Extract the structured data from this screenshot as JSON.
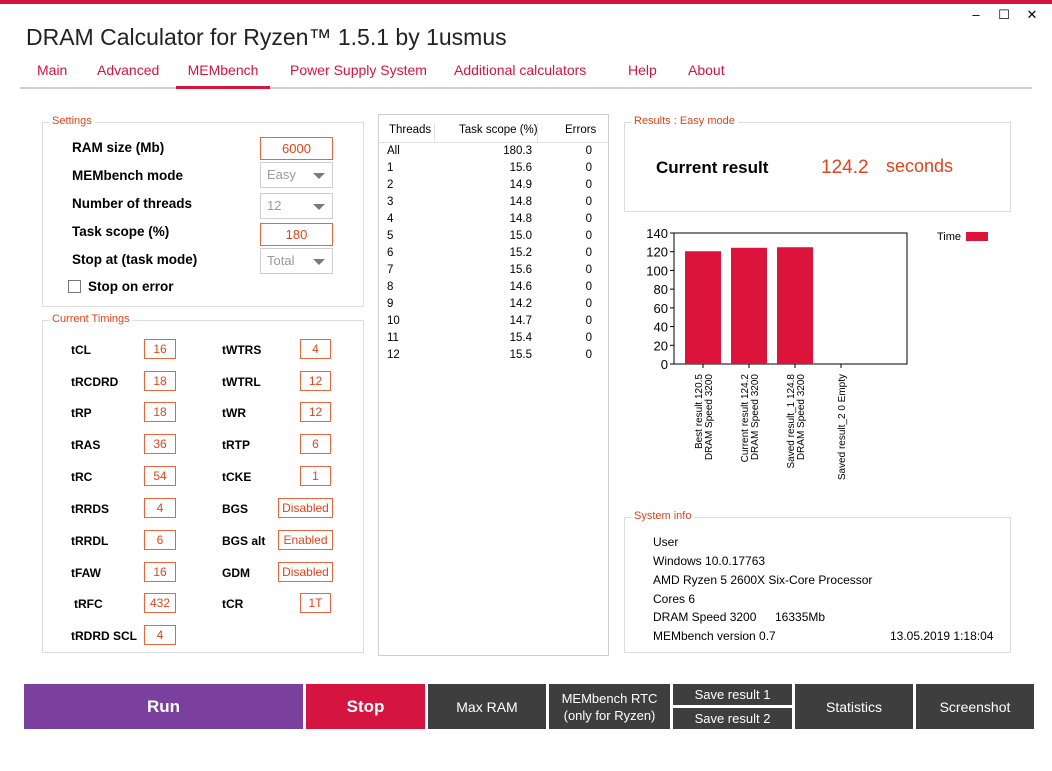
{
  "window": {
    "title": "DRAM Calculator for Ryzen™ 1.5.1 by 1usmus",
    "controls": [
      "–",
      "☐",
      "✕"
    ]
  },
  "menu": [
    {
      "label": "Main"
    },
    {
      "label": "Advanced"
    },
    {
      "label": "MEMbench"
    },
    {
      "label": "Power Supply System"
    },
    {
      "label": "Additional calculators"
    },
    {
      "label": "Help"
    },
    {
      "label": "About"
    }
  ],
  "settings": {
    "title": "Settings",
    "ram_size_label": "RAM size (Mb)",
    "ram_size_value": "6000",
    "mode_label": "MEMbench mode",
    "mode_value": "Easy",
    "threads_label": "Number of threads",
    "threads_value": "12",
    "scope_label": "Task scope (%)",
    "scope_value": "180",
    "stop_at_label": "Stop at (task mode)",
    "stop_at_value": "Total",
    "stop_on_error_label": "Stop on error",
    "stop_on_error_checked": false
  },
  "timings": {
    "title": "Current Timings",
    "left": [
      {
        "name": "tCL",
        "value": "16"
      },
      {
        "name": "tRCDRD",
        "value": "18"
      },
      {
        "name": "tRP",
        "value": "18"
      },
      {
        "name": "tRAS",
        "value": "36"
      },
      {
        "name": "tRC",
        "value": "54"
      },
      {
        "name": "tRRDS",
        "value": "4"
      },
      {
        "name": "tRRDL",
        "value": "6"
      },
      {
        "name": "tFAW",
        "value": "16"
      },
      {
        "name": "tRFC",
        "value": "432"
      },
      {
        "name": "tRDRD SCL",
        "value": "4"
      }
    ],
    "right": [
      {
        "name": "tWTRS",
        "value": "4"
      },
      {
        "name": "tWTRL",
        "value": "12"
      },
      {
        "name": "tWR",
        "value": "12"
      },
      {
        "name": "tRTP",
        "value": "6"
      },
      {
        "name": "tCKE",
        "value": "1"
      },
      {
        "name": "BGS",
        "value": "Disabled"
      },
      {
        "name": "BGS alt",
        "value": "Enabled"
      },
      {
        "name": "GDM",
        "value": "Disabled"
      },
      {
        "name": "tCR",
        "value": "1T"
      }
    ]
  },
  "threads_table": {
    "headers": [
      "Threads",
      "Task scope (%)",
      "Errors"
    ],
    "rows": [
      [
        "All",
        "180.3",
        "0"
      ],
      [
        "1",
        "15.6",
        "0"
      ],
      [
        "2",
        "14.9",
        "0"
      ],
      [
        "3",
        "14.8",
        "0"
      ],
      [
        "4",
        "14.8",
        "0"
      ],
      [
        "5",
        "15.0",
        "0"
      ],
      [
        "6",
        "15.2",
        "0"
      ],
      [
        "7",
        "15.6",
        "0"
      ],
      [
        "8",
        "14.6",
        "0"
      ],
      [
        "9",
        "14.2",
        "0"
      ],
      [
        "10",
        "14.7",
        "0"
      ],
      [
        "11",
        "15.4",
        "0"
      ],
      [
        "12",
        "15.5",
        "0"
      ]
    ]
  },
  "results": {
    "title": "Results : Easy mode",
    "current_label": "Current result",
    "current_value": "124.2",
    "unit": "seconds"
  },
  "chart_data": {
    "type": "bar",
    "categories": [
      [
        "Best result 120.5",
        "DRAM Speed 3200"
      ],
      [
        "Current result 124.2",
        "DRAM Speed 3200"
      ],
      [
        "Saved result_1 124.8",
        "DRAM Speed 3200"
      ],
      [
        "Saved result_2 0 Empty"
      ]
    ],
    "series": [
      {
        "name": "Time",
        "values": [
          120.5,
          124.2,
          124.8,
          0
        ],
        "color": "#dc143c"
      }
    ],
    "ylim": [
      0,
      140
    ],
    "yticks": [
      0,
      20,
      40,
      60,
      80,
      100,
      120,
      140
    ],
    "grid": false,
    "legend": "top-right"
  },
  "system_info": {
    "title": "System info",
    "user": "User",
    "os": "Windows 10.0.17763",
    "cpu": "AMD Ryzen 5 2600X Six-Core Processor",
    "cores": "Cores 6",
    "dram_speed": "DRAM Speed 3200",
    "memory": "16335Mb",
    "membench_version": "MEMbench version 0.7",
    "timestamp": "13.05.2019 1:18:04"
  },
  "buttons": {
    "run": "Run",
    "stop": "Stop",
    "max_ram": "Max RAM",
    "rtc_line1": "MEMbench RTC",
    "rtc_line2": "(only for Ryzen)",
    "save1": "Save result 1",
    "save2": "Save result 2",
    "statistics": "Statistics",
    "screenshot": "Screenshot"
  },
  "colors": {
    "accent": "#d5153f",
    "orange": "#e0441b",
    "run": "#7b3f9e",
    "stop": "#d5153f",
    "button_gray": "#3e3e3e",
    "bar": "#dc143c"
  }
}
